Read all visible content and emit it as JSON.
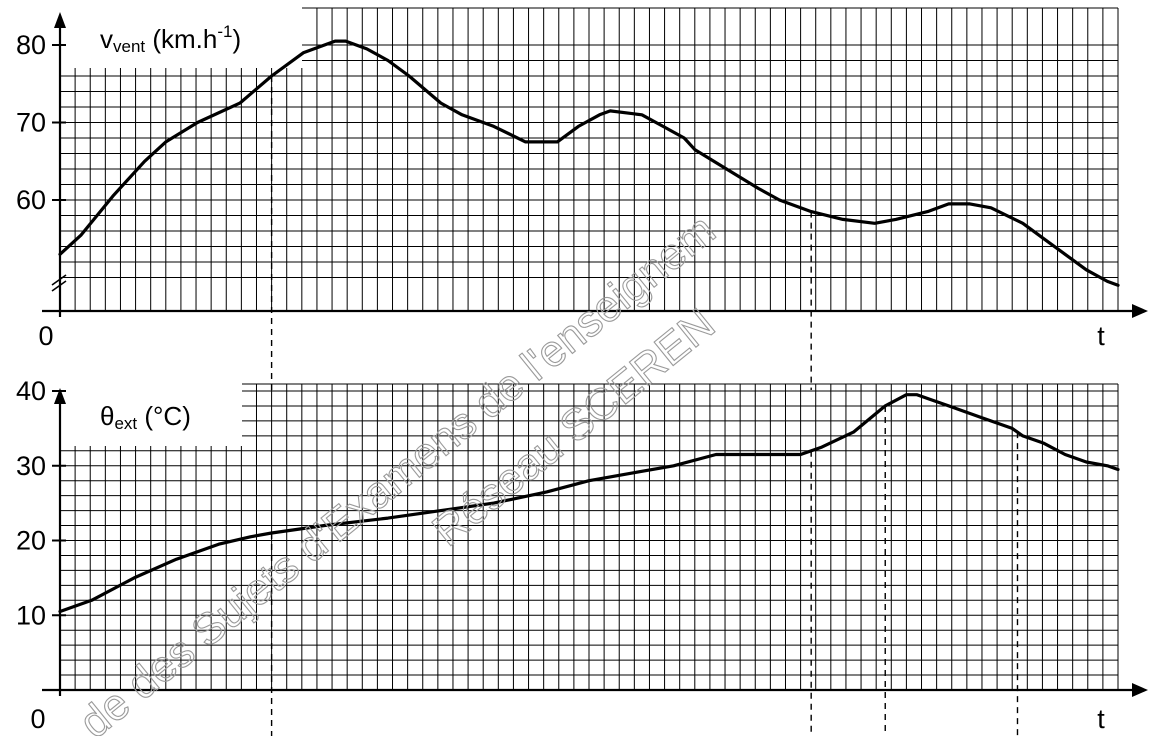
{
  "watermark": {
    "line1": "de des Sujets d'Examens de l'enseignem",
    "line2": "Réseau SCEREN"
  },
  "chart_data": [
    {
      "type": "line",
      "title_main": "v",
      "title_sub": "vent",
      "title_unit": " (km.h",
      "title_exp": "-1",
      "title_close": ")",
      "origin_label": "0",
      "xlabel": "t",
      "ylim": [
        48,
        80
      ],
      "yticks": [
        60,
        70,
        80
      ],
      "axis_break": true,
      "grid": true,
      "x": [
        0,
        0.02,
        0.05,
        0.08,
        0.1,
        0.13,
        0.17,
        0.2,
        0.23,
        0.26,
        0.27,
        0.29,
        0.31,
        0.33,
        0.36,
        0.38,
        0.41,
        0.44,
        0.47,
        0.49,
        0.51,
        0.52,
        0.55,
        0.57,
        0.59,
        0.6,
        0.63,
        0.66,
        0.68,
        0.71,
        0.74,
        0.77,
        0.79,
        0.82,
        0.84,
        0.86,
        0.88,
        0.91,
        0.93,
        0.95,
        0.97,
        0.99,
        1.0
      ],
      "y": [
        53,
        55.5,
        60.5,
        65,
        67.5,
        70,
        72.5,
        76,
        79,
        80.5,
        80.5,
        79.5,
        78,
        76,
        72.5,
        71,
        69.5,
        67.5,
        67.5,
        69.5,
        71,
        71.5,
        71,
        69.5,
        68,
        66.5,
        64,
        61.5,
        60,
        58.5,
        57.5,
        57,
        57.5,
        58.5,
        59.5,
        59.5,
        59,
        57,
        55,
        53,
        51,
        49.5,
        49
      ],
      "guides_x": [
        0.2,
        0.71
      ]
    },
    {
      "type": "line",
      "title_main": "θ",
      "title_sub": "ext",
      "title_unit": " (°C)",
      "origin_label": "0",
      "xlabel": "t",
      "ylim": [
        0,
        40
      ],
      "yticks": [
        10,
        20,
        30,
        40
      ],
      "grid": true,
      "x": [
        0,
        0.03,
        0.07,
        0.11,
        0.15,
        0.18,
        0.2,
        0.25,
        0.31,
        0.36,
        0.41,
        0.46,
        0.5,
        0.54,
        0.58,
        0.62,
        0.65,
        0.67,
        0.7,
        0.72,
        0.75,
        0.78,
        0.8,
        0.81,
        0.82,
        0.84,
        0.87,
        0.9,
        0.91,
        0.93,
        0.95,
        0.97,
        0.99,
        1.0
      ],
      "y": [
        10.5,
        12,
        15,
        17.5,
        19.5,
        20.5,
        21,
        22,
        23,
        24,
        25,
        26.5,
        28,
        29,
        30,
        31.5,
        31.5,
        31.5,
        31.5,
        32.5,
        34.5,
        38,
        39.5,
        39.5,
        39,
        38,
        36.5,
        35,
        34,
        33,
        31.5,
        30.5,
        30,
        29.5
      ],
      "guides_x": [
        0.2,
        0.71,
        0.78,
        0.905
      ]
    }
  ]
}
